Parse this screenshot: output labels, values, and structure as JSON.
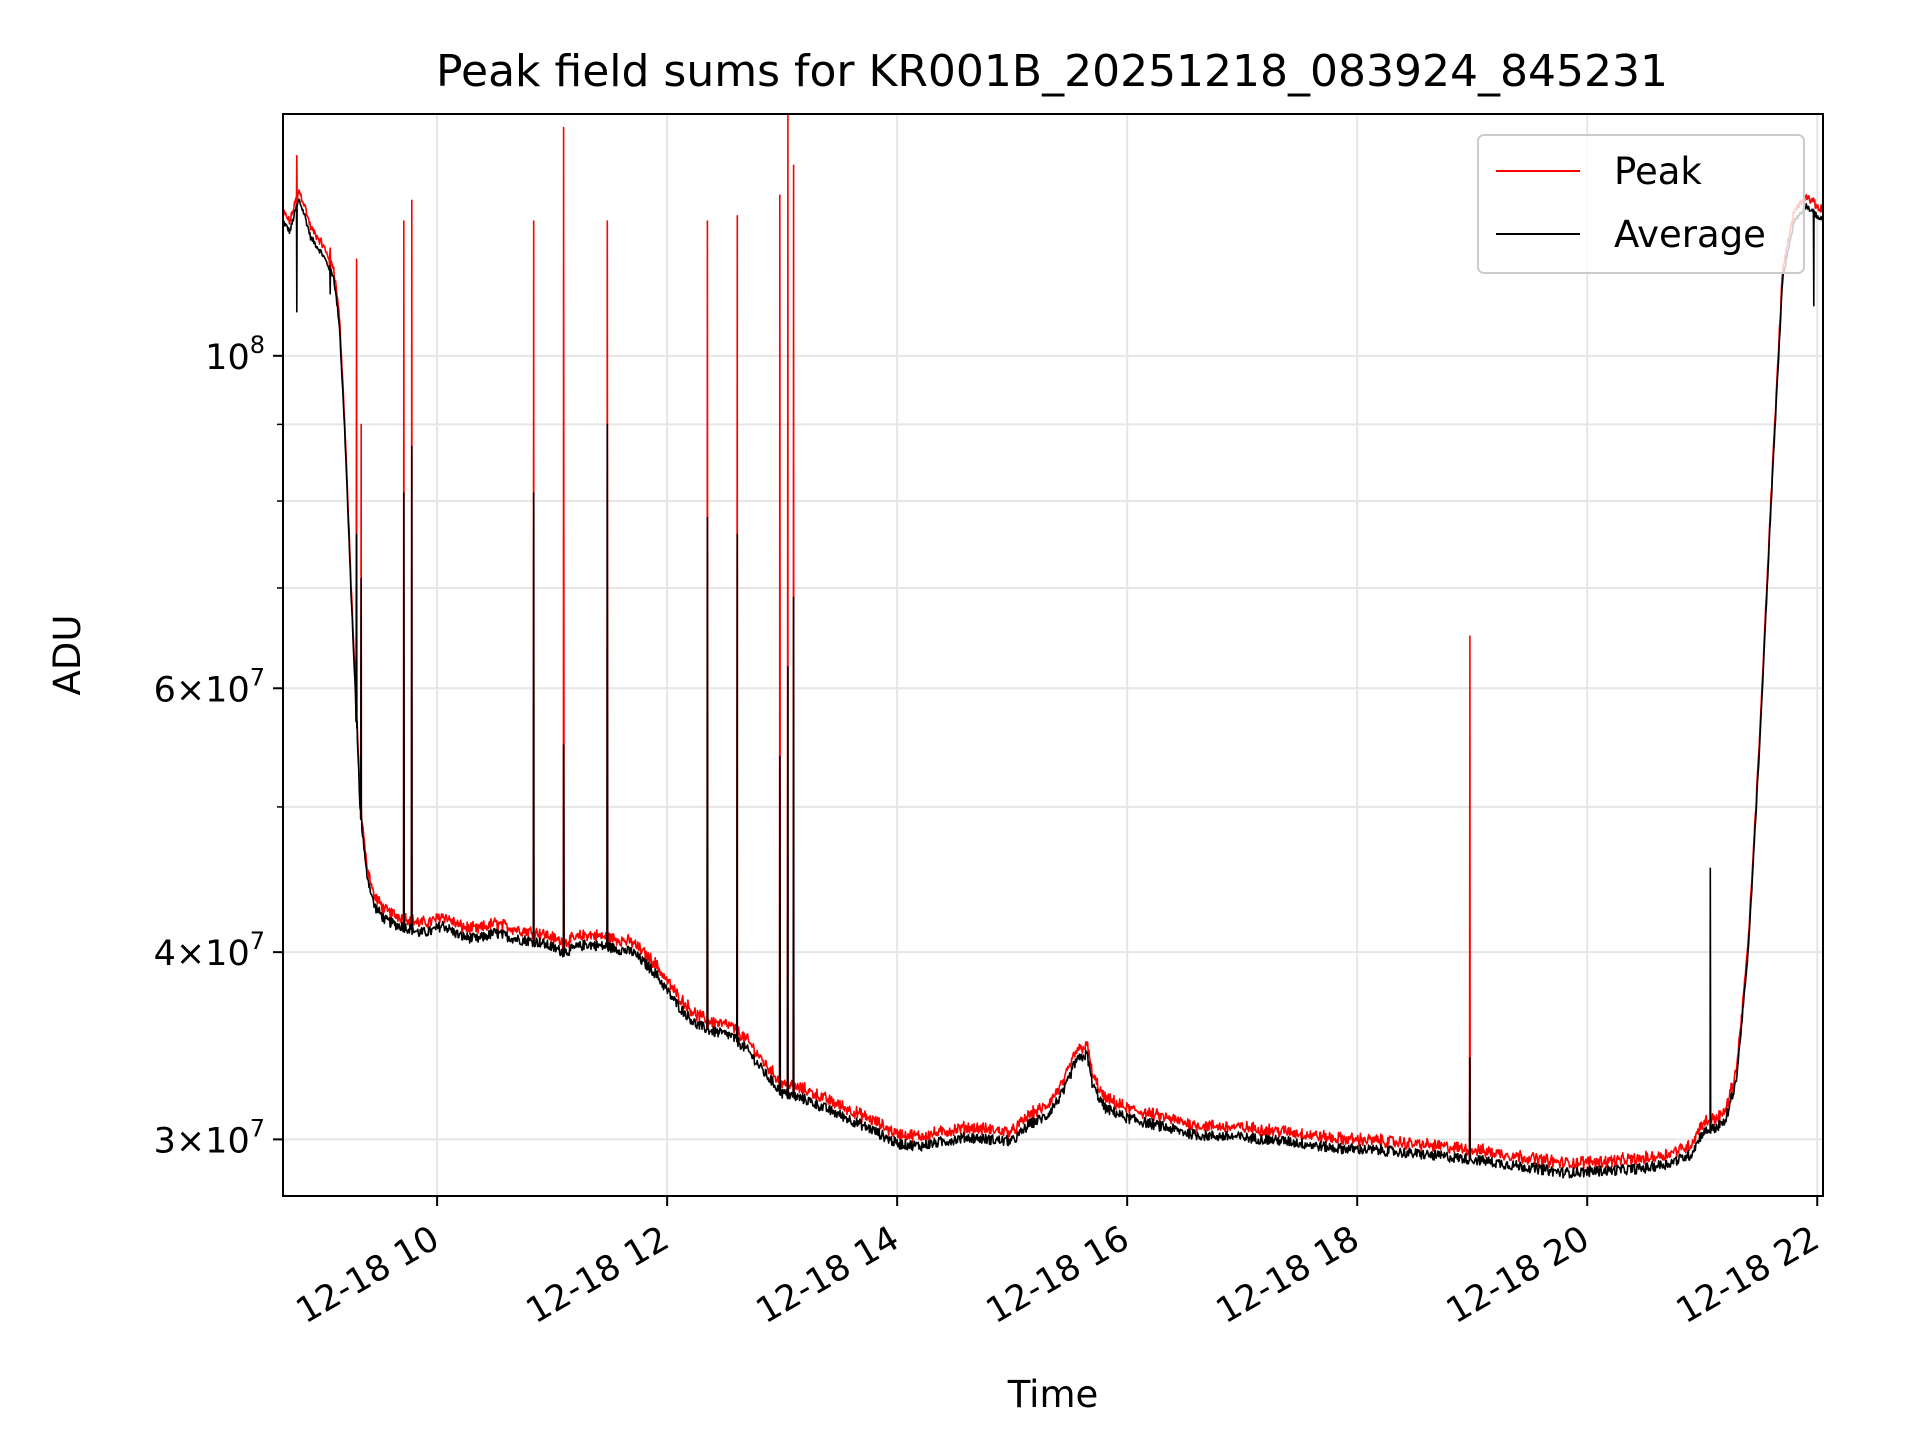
{
  "chart_data": {
    "type": "line",
    "title": "Peak field sums for KR001B_20251218_083924_845231",
    "xlabel": "Time",
    "ylabel": "ADU",
    "x_unit": "hours since 12-18 00:00",
    "xlim": [
      8.66,
      22.05
    ],
    "ylim": [
      27500000.0,
      145000000.0
    ],
    "yscale": "log",
    "grid": true,
    "legend_position": "top-right",
    "x_ticks": [
      {
        "value": 10,
        "label": "12-18 10"
      },
      {
        "value": 12,
        "label": "12-18 12"
      },
      {
        "value": 14,
        "label": "12-18 14"
      },
      {
        "value": 16,
        "label": "12-18 16"
      },
      {
        "value": 18,
        "label": "12-18 18"
      },
      {
        "value": 20,
        "label": "12-18 20"
      },
      {
        "value": 22,
        "label": "12-18 22"
      }
    ],
    "y_ticks": [
      {
        "value": 100000000,
        "base": "10",
        "exp": "8"
      },
      {
        "value": 60000000,
        "base": "6×10",
        "exp": "7"
      },
      {
        "value": 40000000,
        "base": "4×10",
        "exp": "7"
      },
      {
        "value": 30000000,
        "base": "3×10",
        "exp": "7"
      }
    ],
    "y_minor_ticks": [
      50000000,
      70000000,
      80000000,
      90000000
    ],
    "baseline": {
      "x": [
        8.66,
        8.72,
        8.78,
        8.8,
        8.85,
        8.9,
        9.0,
        9.1,
        9.15,
        9.2,
        9.25,
        9.3,
        9.33,
        9.38,
        9.45,
        9.55,
        9.65,
        9.75,
        9.85,
        9.95,
        10.05,
        10.2,
        10.35,
        10.5,
        10.7,
        10.9,
        11.1,
        11.3,
        11.5,
        11.7,
        11.9,
        12.0,
        12.1,
        12.25,
        12.4,
        12.55,
        12.7,
        12.85,
        13.0,
        13.2,
        13.4,
        13.6,
        13.8,
        14.0,
        14.2,
        14.4,
        14.6,
        14.8,
        15.0,
        15.15,
        15.3,
        15.45,
        15.55,
        15.65,
        15.7,
        15.8,
        16.0,
        16.3,
        16.6,
        17.0,
        17.4,
        17.8,
        18.2,
        18.6,
        19.0,
        19.4,
        19.8,
        20.2,
        20.5,
        20.7,
        20.9,
        21.0,
        21.1,
        21.2,
        21.3,
        21.4,
        21.5,
        21.6,
        21.7,
        21.8,
        21.9,
        22.05
      ],
      "y": [
        123000000.0,
        121000000.0,
        126000000.0,
        127000000.0,
        124000000.0,
        120000000.0,
        117000000.0,
        113000000.0,
        105000000.0,
        88000000.0,
        70000000.0,
        57000000.0,
        50000000.0,
        45500000.0,
        43000000.0,
        42000000.0,
        41700000.0,
        41500000.0,
        41200000.0,
        41300000.0,
        41700000.0,
        41000000.0,
        40800000.0,
        41200000.0,
        40800000.0,
        40600000.0,
        40000000.0,
        40500000.0,
        40300000.0,
        40000000.0,
        38700000.0,
        37700000.0,
        36800000.0,
        35800000.0,
        35400000.0,
        35200000.0,
        34400000.0,
        33200000.0,
        32200000.0,
        31900000.0,
        31400000.0,
        30900000.0,
        30400000.0,
        29800000.0,
        29700000.0,
        29900000.0,
        30100000.0,
        30000000.0,
        29900000.0,
        30700000.0,
        31100000.0,
        32300000.0,
        33800000.0,
        34200000.0,
        32600000.0,
        31500000.0,
        31000000.0,
        30600000.0,
        30200000.0,
        30100000.0,
        29900000.0,
        29600000.0,
        29500000.0,
        29300000.0,
        29100000.0,
        28800000.0,
        28500000.0,
        28600000.0,
        28700000.0,
        28900000.0,
        29300000.0,
        30300000.0,
        30500000.0,
        30800000.0,
        33000000.0,
        40000000.0,
        55000000.0,
        80000000.0,
        113000000.0,
        123000000.0,
        126000000.0,
        123000000.0
      ],
      "peak_excess": 0.015
    },
    "series": [
      {
        "name": "Peak",
        "color": "#ff0000",
        "spikes": [
          {
            "x": 8.78,
            "y": 136000000.0
          },
          {
            "x": 9.07,
            "y": 118000000.0
          },
          {
            "x": 9.3,
            "y": 116000000.0
          },
          {
            "x": 9.34,
            "y": 90000000.0
          },
          {
            "x": 9.71,
            "y": 123000000.0
          },
          {
            "x": 9.78,
            "y": 127000000.0
          },
          {
            "x": 10.84,
            "y": 123000000.0
          },
          {
            "x": 11.1,
            "y": 142000000.0
          },
          {
            "x": 11.48,
            "y": 123000000.0
          },
          {
            "x": 12.35,
            "y": 123000000.0
          },
          {
            "x": 12.61,
            "y": 124000000.0
          },
          {
            "x": 12.98,
            "y": 128000000.0
          },
          {
            "x": 13.05,
            "y": 145000000.0
          },
          {
            "x": 13.1,
            "y": 134000000.0
          },
          {
            "x": 18.98,
            "y": 65000000.0
          }
        ]
      },
      {
        "name": "Average",
        "color": "#000000",
        "spikes": [
          {
            "x": 8.78,
            "y": 107000000.0
          },
          {
            "x": 9.07,
            "y": 110000000.0
          },
          {
            "x": 9.3,
            "y": 76000000.0
          },
          {
            "x": 9.34,
            "y": 71000000.0
          },
          {
            "x": 9.71,
            "y": 81000000.0
          },
          {
            "x": 9.78,
            "y": 87000000.0
          },
          {
            "x": 10.84,
            "y": 81000000.0
          },
          {
            "x": 11.1,
            "y": 55000000.0
          },
          {
            "x": 11.48,
            "y": 90000000.0
          },
          {
            "x": 12.35,
            "y": 78000000.0
          },
          {
            "x": 12.61,
            "y": 76000000.0
          },
          {
            "x": 12.98,
            "y": 54000000.0
          },
          {
            "x": 13.05,
            "y": 62000000.0
          },
          {
            "x": 13.1,
            "y": 69000000.0
          },
          {
            "x": 18.98,
            "y": 34000000.0
          },
          {
            "x": 21.07,
            "y": 45500000.0
          },
          {
            "x": 21.97,
            "y": 108000000.0
          }
        ]
      }
    ]
  }
}
